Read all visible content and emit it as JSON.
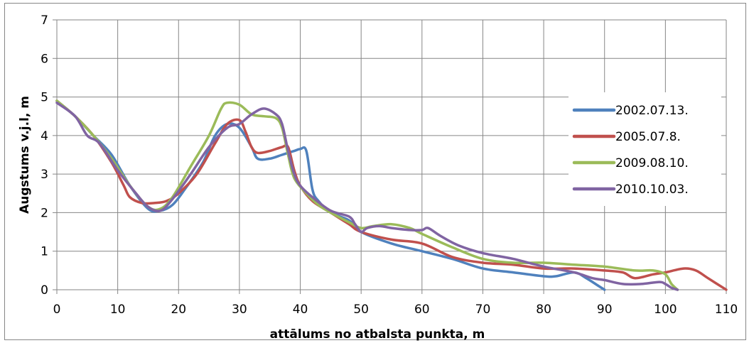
{
  "chart_data": {
    "type": "line",
    "title": "",
    "xlabel": "attālums no atbalsta punkta, m",
    "ylabel": "Augstums v.j.l, m",
    "xlim": [
      0,
      110
    ],
    "ylim": [
      0,
      7
    ],
    "x_ticks": [
      "0",
      "10",
      "20",
      "30",
      "40",
      "50",
      "60",
      "70",
      "80",
      "90",
      "100",
      "110"
    ],
    "y_ticks": [
      "0",
      "1",
      "2",
      "3",
      "4",
      "5",
      "6",
      "7"
    ],
    "grid": true,
    "legend_position": "right",
    "series": [
      {
        "name": "2002.07.13.",
        "color": "#4F81BD",
        "points": [
          [
            0,
            4.9
          ],
          [
            3,
            4.5
          ],
          [
            6,
            4.0
          ],
          [
            9,
            3.5
          ],
          [
            12,
            2.7
          ],
          [
            15,
            2.1
          ],
          [
            17,
            2.05
          ],
          [
            19,
            2.2
          ],
          [
            21,
            2.6
          ],
          [
            24,
            3.3
          ],
          [
            26,
            4.0
          ],
          [
            28,
            4.3
          ],
          [
            30,
            4.2
          ],
          [
            32,
            3.7
          ],
          [
            33,
            3.4
          ],
          [
            35,
            3.4
          ],
          [
            37,
            3.5
          ],
          [
            39,
            3.6
          ],
          [
            40,
            3.65
          ],
          [
            41,
            3.6
          ],
          [
            42,
            2.6
          ],
          [
            43,
            2.3
          ],
          [
            45,
            2.0
          ],
          [
            48,
            1.8
          ],
          [
            50,
            1.5
          ],
          [
            55,
            1.2
          ],
          [
            60,
            1.0
          ],
          [
            65,
            0.8
          ],
          [
            70,
            0.55
          ],
          [
            75,
            0.45
          ],
          [
            80,
            0.35
          ],
          [
            82,
            0.35
          ],
          [
            85,
            0.45
          ],
          [
            87,
            0.3
          ],
          [
            89,
            0.1
          ],
          [
            90,
            0.0
          ]
        ]
      },
      {
        "name": "2005.07.8.",
        "color": "#C0504D",
        "points": [
          [
            0,
            4.9
          ],
          [
            3,
            4.5
          ],
          [
            6,
            4.0
          ],
          [
            9,
            3.3
          ],
          [
            11,
            2.7
          ],
          [
            12,
            2.4
          ],
          [
            14,
            2.25
          ],
          [
            16,
            2.25
          ],
          [
            18,
            2.3
          ],
          [
            20,
            2.5
          ],
          [
            23,
            3.0
          ],
          [
            26,
            3.8
          ],
          [
            28,
            4.3
          ],
          [
            30,
            4.4
          ],
          [
            31,
            4.1
          ],
          [
            32,
            3.7
          ],
          [
            33,
            3.55
          ],
          [
            35,
            3.6
          ],
          [
            37,
            3.7
          ],
          [
            38,
            3.7
          ],
          [
            39,
            3.1
          ],
          [
            40,
            2.7
          ],
          [
            42,
            2.3
          ],
          [
            45,
            2.0
          ],
          [
            48,
            1.7
          ],
          [
            50,
            1.5
          ],
          [
            55,
            1.3
          ],
          [
            60,
            1.2
          ],
          [
            65,
            0.85
          ],
          [
            70,
            0.7
          ],
          [
            75,
            0.65
          ],
          [
            80,
            0.55
          ],
          [
            85,
            0.55
          ],
          [
            90,
            0.5
          ],
          [
            93,
            0.45
          ],
          [
            95,
            0.3
          ],
          [
            98,
            0.4
          ],
          [
            100,
            0.45
          ],
          [
            103,
            0.55
          ],
          [
            105,
            0.5
          ],
          [
            107,
            0.3
          ],
          [
            110,
            0.0
          ]
        ]
      },
      {
        "name": "2009.08.10.",
        "color": "#9BBB59",
        "points": [
          [
            0,
            4.9
          ],
          [
            3,
            4.5
          ],
          [
            6,
            4.0
          ],
          [
            9,
            3.4
          ],
          [
            12,
            2.7
          ],
          [
            15,
            2.15
          ],
          [
            17,
            2.1
          ],
          [
            19,
            2.4
          ],
          [
            22,
            3.2
          ],
          [
            25,
            4.0
          ],
          [
            27,
            4.7
          ],
          [
            28,
            4.85
          ],
          [
            30,
            4.8
          ],
          [
            32,
            4.55
          ],
          [
            34,
            4.5
          ],
          [
            36,
            4.45
          ],
          [
            37,
            4.2
          ],
          [
            38,
            3.5
          ],
          [
            39,
            2.9
          ],
          [
            41,
            2.5
          ],
          [
            43,
            2.2
          ],
          [
            45,
            2.0
          ],
          [
            48,
            1.75
          ],
          [
            50,
            1.6
          ],
          [
            52,
            1.65
          ],
          [
            55,
            1.7
          ],
          [
            58,
            1.6
          ],
          [
            60,
            1.45
          ],
          [
            65,
            1.1
          ],
          [
            70,
            0.8
          ],
          [
            75,
            0.7
          ],
          [
            80,
            0.7
          ],
          [
            85,
            0.65
          ],
          [
            90,
            0.6
          ],
          [
            95,
            0.5
          ],
          [
            98,
            0.5
          ],
          [
            100,
            0.4
          ],
          [
            101,
            0.15
          ],
          [
            102,
            0.0
          ]
        ]
      },
      {
        "name": "2010.10.03.",
        "color": "#8064A2",
        "points": [
          [
            0,
            4.85
          ],
          [
            3,
            4.5
          ],
          [
            5,
            4.0
          ],
          [
            7,
            3.8
          ],
          [
            10,
            3.1
          ],
          [
            13,
            2.5
          ],
          [
            15,
            2.15
          ],
          [
            17,
            2.05
          ],
          [
            19,
            2.35
          ],
          [
            22,
            3.0
          ],
          [
            25,
            3.7
          ],
          [
            28,
            4.2
          ],
          [
            30,
            4.3
          ],
          [
            32,
            4.55
          ],
          [
            34,
            4.7
          ],
          [
            36,
            4.55
          ],
          [
            37,
            4.3
          ],
          [
            38,
            3.6
          ],
          [
            39,
            3.0
          ],
          [
            40,
            2.7
          ],
          [
            42,
            2.4
          ],
          [
            45,
            2.05
          ],
          [
            48,
            1.9
          ],
          [
            49,
            1.7
          ],
          [
            50,
            1.5
          ],
          [
            51,
            1.6
          ],
          [
            53,
            1.65
          ],
          [
            55,
            1.6
          ],
          [
            58,
            1.55
          ],
          [
            60,
            1.55
          ],
          [
            61,
            1.6
          ],
          [
            63,
            1.4
          ],
          [
            66,
            1.15
          ],
          [
            70,
            0.95
          ],
          [
            75,
            0.8
          ],
          [
            80,
            0.6
          ],
          [
            85,
            0.45
          ],
          [
            88,
            0.3
          ],
          [
            90,
            0.25
          ],
          [
            93,
            0.15
          ],
          [
            96,
            0.15
          ],
          [
            99,
            0.2
          ],
          [
            100,
            0.15
          ],
          [
            101,
            0.05
          ],
          [
            102,
            0.0
          ]
        ]
      }
    ]
  }
}
